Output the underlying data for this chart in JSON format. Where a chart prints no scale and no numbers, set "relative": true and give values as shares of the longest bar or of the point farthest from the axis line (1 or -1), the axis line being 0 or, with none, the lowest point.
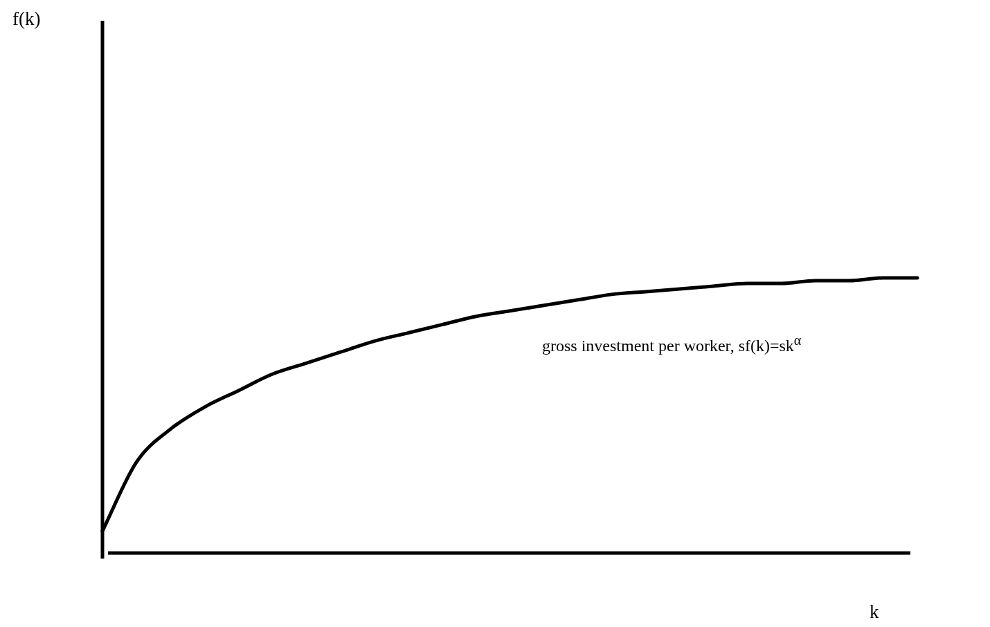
{
  "chart_data": {
    "type": "line",
    "relative": true,
    "annotations": [
      "f(k)"
    ],
    "xlabel": "k",
    "legend": false,
    "marker": "none",
    "line_style": "solid",
    "categories": [
      null,
      null,
      null,
      null,
      null,
      null,
      null,
      null,
      null,
      null,
      null,
      null,
      null,
      null,
      null,
      null,
      null,
      null,
      null,
      null,
      null,
      null,
      null,
      null,
      null
    ],
    "series": [
      {
        "name": "gross investment per worker, sf(k)=sk$^{α}$",
        "color": "#000000",
        "values": [
          0.08,
          0.33,
          0.45,
          0.53,
          0.59,
          0.65,
          0.69,
          0.73,
          0.77,
          0.8,
          0.83,
          0.86,
          0.88,
          0.9,
          0.92,
          0.94,
          0.95,
          0.96,
          0.97,
          0.98,
          0.98,
          0.99,
          0.99,
          1.0,
          1.0
        ]
      }
    ]
  }
}
